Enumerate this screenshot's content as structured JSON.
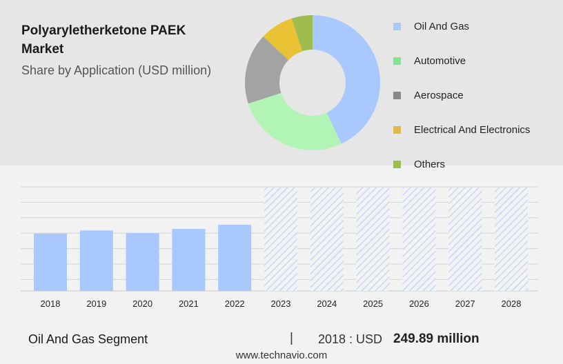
{
  "header": {
    "title": "Polyaryletherketone PAEK Market",
    "subtitle": "Share by Application (USD million)"
  },
  "donut": {
    "categories": [
      "Oil And Gas",
      "Automotive",
      "Aerospace",
      "Electrical And Electronics",
      "Others"
    ],
    "values": [
      43,
      27,
      17,
      8,
      5
    ],
    "colors": [
      "#a9c8fd",
      "#b2f3b6",
      "#a3a3a3",
      "#e8c233",
      "#9fbd4e"
    ]
  },
  "legend_swatch_colors": [
    "#a9c8fd",
    "#84e294",
    "#888888",
    "#e1b94b",
    "#9fbd4e"
  ],
  "chart_data": {
    "type": "bar",
    "categories": [
      "2018",
      "2019",
      "2020",
      "2021",
      "2022",
      "2023",
      "2024",
      "2025",
      "2026",
      "2027",
      "2028"
    ],
    "values": [
      249.89,
      263,
      252,
      270,
      288,
      null,
      null,
      null,
      null,
      null,
      null
    ],
    "forecast_categories": [
      "2023",
      "2024",
      "2025",
      "2026",
      "2027",
      "2028"
    ],
    "ylim": [
      0,
      450
    ],
    "grid": true,
    "bar_color": "#a9c8fd",
    "forecast_color": "#b9cdf5"
  },
  "footer": {
    "segment_label": "Oil And Gas Segment",
    "separator": "|",
    "value_label": "2018 : USD",
    "value": "249.89 million"
  },
  "watermark": "www.technavio.com"
}
